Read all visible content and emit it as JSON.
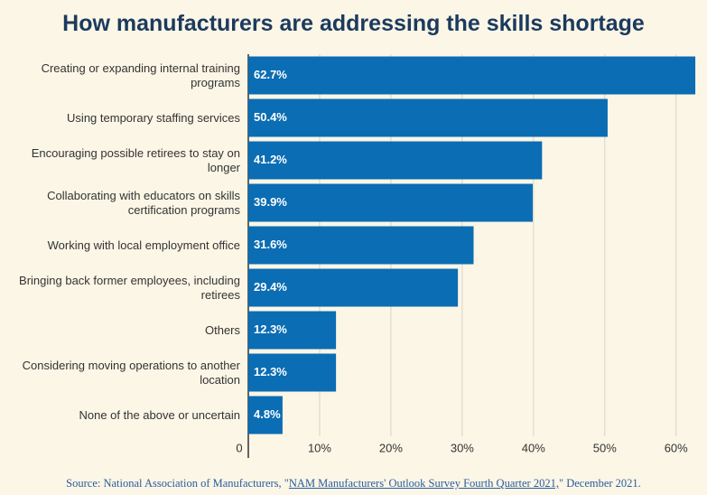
{
  "chart_data": {
    "type": "bar",
    "orientation": "horizontal",
    "title": "How manufacturers are addressing the skills shortage",
    "categories": [
      "Creating or expanding internal training programs",
      "Using temporary staffing services",
      "Encouraging possible retirees to stay on longer",
      "Collaborating with educators on skills certification programs",
      "Working with local employment office",
      "Bringing back former employees, including retirees",
      "Others",
      "Considering moving operations to another location",
      "None of the above or uncertain"
    ],
    "values": [
      62.7,
      50.4,
      41.2,
      39.9,
      31.6,
      29.4,
      12.3,
      12.3,
      4.8
    ],
    "value_labels": [
      "62.7%",
      "50.4%",
      "41.2%",
      "39.9%",
      "31.6%",
      "29.4%",
      "12.3%",
      "12.3%",
      "4.8%"
    ],
    "color": "#0b6db3",
    "xlim": [
      0,
      63.2
    ],
    "xticks": [
      0,
      {
        "value": 10,
        "label": "10%"
      },
      {
        "value": 20,
        "label": "20%"
      },
      {
        "value": 30,
        "label": "30%"
      },
      {
        "value": 40,
        "label": "40%"
      },
      {
        "value": 50,
        "label": "50%"
      },
      {
        "value": 60,
        "label": "60%"
      }
    ],
    "grid": true
  },
  "source": {
    "prefix": "Source: National Association of Manufacturers, \"",
    "link": "NAM Manufacturers' Outlook Survey Fourth Quarter 2021,",
    "suffix": "\" December 2021."
  }
}
